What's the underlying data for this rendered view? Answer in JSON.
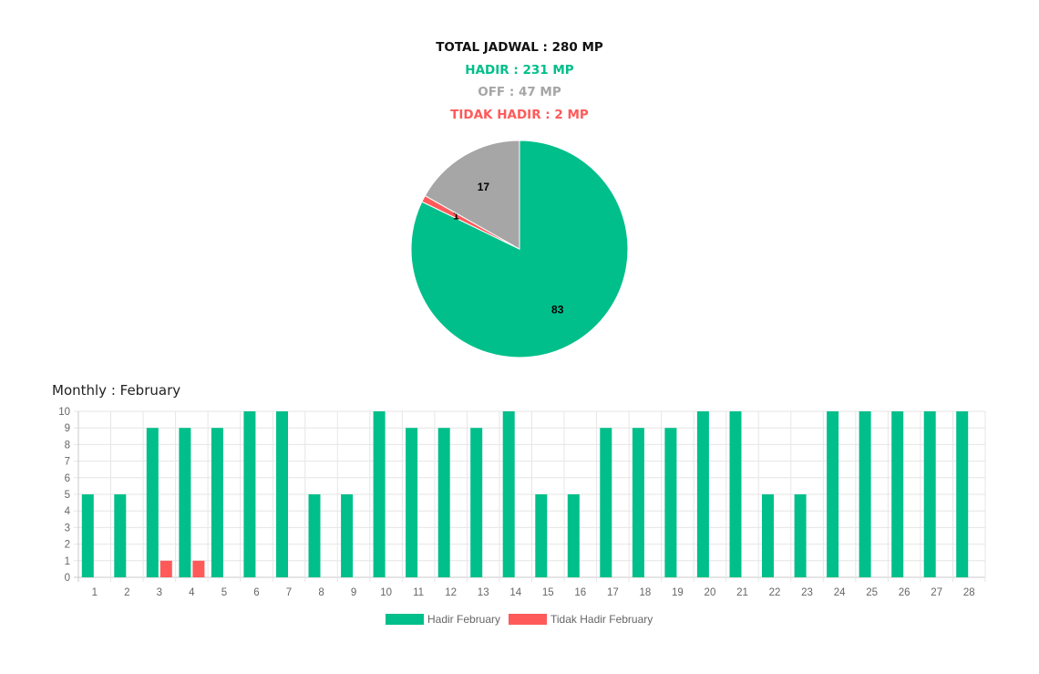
{
  "summary": {
    "total": "TOTAL JADWAL : 280 MP",
    "hadir": "HADIR : 231 MP",
    "off": "OFF : 47 MP",
    "tidak_hadir": "TIDAK HADIR : 2 MP"
  },
  "colors": {
    "hadir": "#00bf8a",
    "off": "#a6a6a6",
    "tidak_hadir": "#ff5a5a",
    "grid": "#e6e6e6",
    "axis": "#c8c8c8"
  },
  "monthly_title": "Monthly : February",
  "chart_data": [
    {
      "type": "pie",
      "slices": [
        {
          "label": "83",
          "value": 83,
          "color": "#00bf8a"
        },
        {
          "label": "1",
          "value": 1,
          "color": "#ff5a5a"
        },
        {
          "label": "17",
          "value": 17,
          "color": "#a6a6a6"
        }
      ]
    },
    {
      "type": "bar",
      "title": "Monthly : February",
      "categories": [
        "1",
        "2",
        "3",
        "4",
        "5",
        "6",
        "7",
        "8",
        "9",
        "10",
        "11",
        "12",
        "13",
        "14",
        "15",
        "16",
        "17",
        "18",
        "19",
        "20",
        "21",
        "22",
        "23",
        "24",
        "25",
        "26",
        "27",
        "28"
      ],
      "series": [
        {
          "name": "Hadir February",
          "color": "#00bf8a",
          "values": [
            5,
            5,
            9,
            9,
            9,
            10,
            10,
            5,
            5,
            10,
            9,
            9,
            9,
            10,
            5,
            5,
            9,
            9,
            9,
            10,
            10,
            5,
            5,
            10,
            10,
            10,
            10,
            10
          ]
        },
        {
          "name": "Tidak Hadir February",
          "color": "#ff5a5a",
          "values": [
            0,
            0,
            1,
            1,
            0,
            0,
            0,
            0,
            0,
            0,
            0,
            0,
            0,
            0,
            0,
            0,
            0,
            0,
            0,
            0,
            0,
            0,
            0,
            0,
            0,
            0,
            0,
            0
          ]
        }
      ],
      "ylim": [
        0,
        10
      ],
      "yticks": [
        "0",
        "1",
        "2",
        "3",
        "4",
        "5",
        "6",
        "7",
        "8",
        "9",
        "10"
      ],
      "grid": true,
      "legend": "bottom"
    }
  ]
}
